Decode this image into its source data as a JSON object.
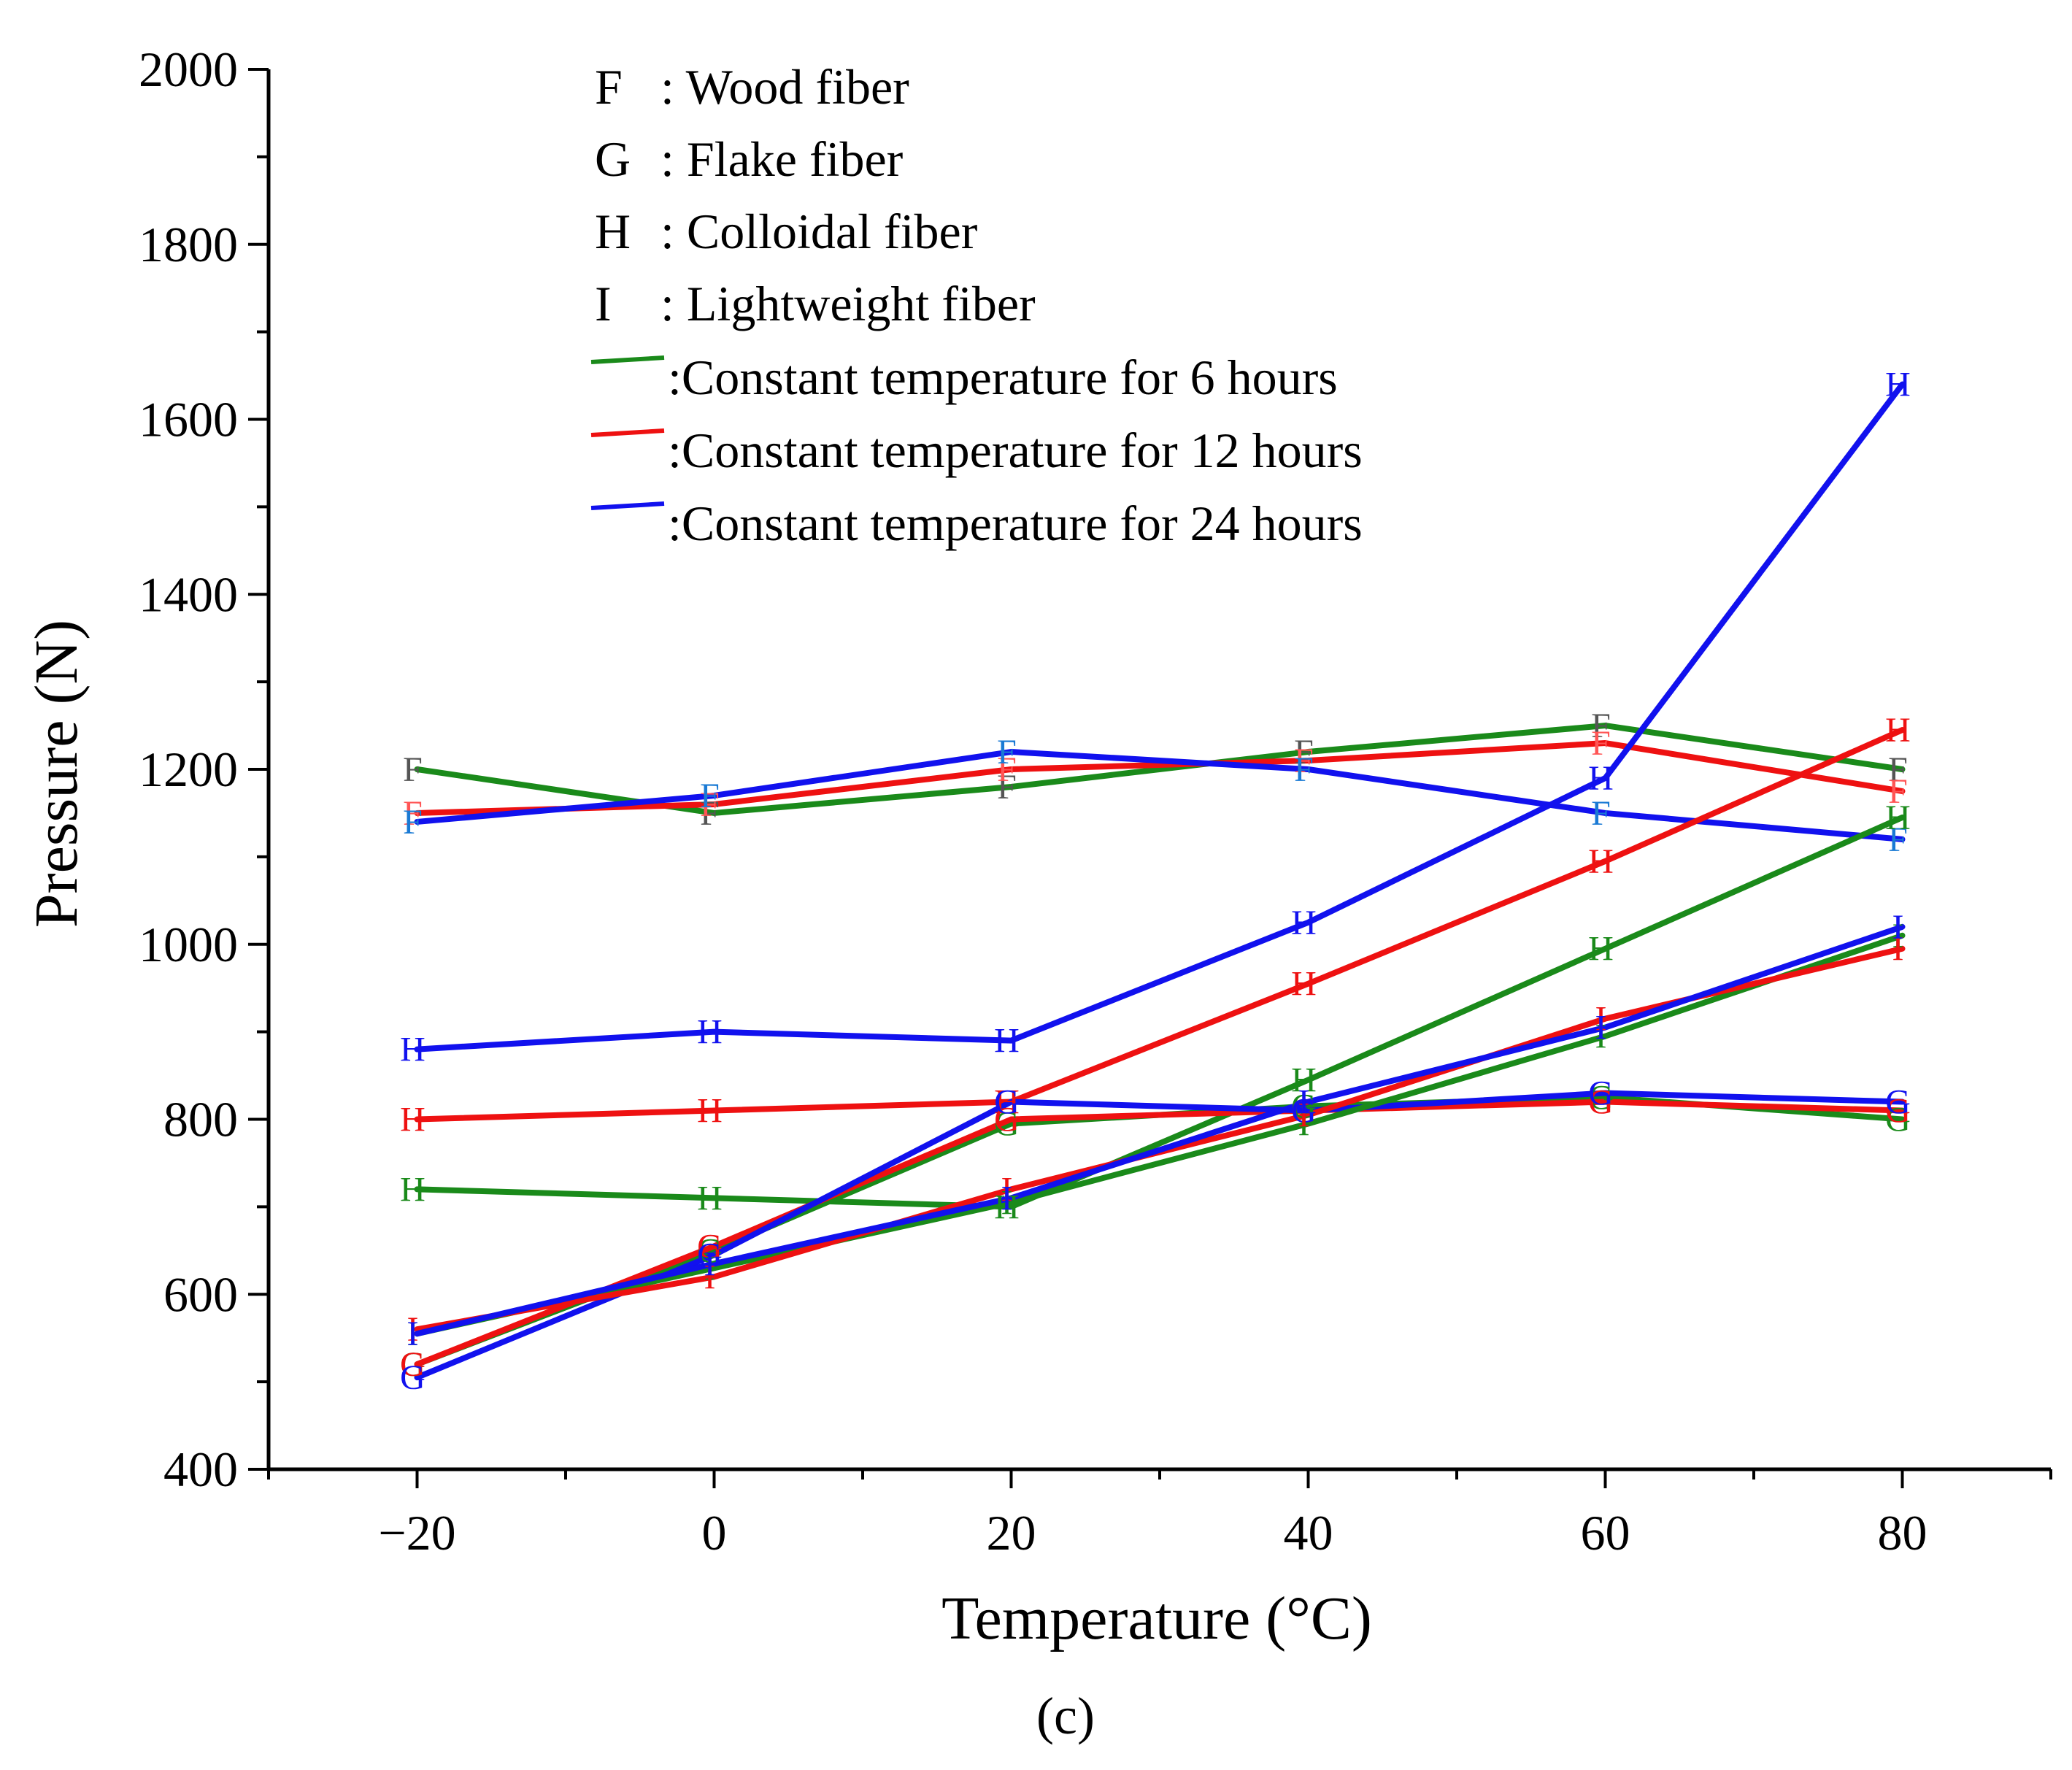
{
  "chart_data": {
    "type": "line",
    "xlabel": "Temperature (°C)",
    "ylabel": "Pressure (N)",
    "caption": "(c)",
    "xlim": [
      -30,
      90
    ],
    "ylim": [
      400,
      2000
    ],
    "x_ticks": [
      -20,
      0,
      20,
      40,
      60,
      80
    ],
    "x_tick_labels": [
      "−20",
      "0",
      "20",
      "40",
      "60",
      "80"
    ],
    "y_ticks": [
      400,
      600,
      800,
      1000,
      1200,
      1400,
      1600,
      1800,
      2000
    ],
    "y_tick_labels": [
      "400",
      "600",
      "800",
      "1000",
      "1200",
      "1400",
      "1600",
      "1800",
      "2000"
    ],
    "x": [
      -20,
      0,
      20,
      40,
      60,
      80
    ],
    "legend": {
      "placement": "top-center",
      "fiber_entries": [
        {
          "marker": "F",
          "label": ": Wood fiber"
        },
        {
          "marker": "G",
          "label": ": Flake fiber"
        },
        {
          "marker": "H",
          "label": ": Colloidal fiber"
        },
        {
          "marker": "I",
          "label": ": Lightweight fiber"
        }
      ],
      "line_entries": [
        {
          "color": "#1a8a1a",
          "label": ":Constant temperature for 6 hours"
        },
        {
          "color": "#ee1111",
          "label": ":Constant temperature for 12 hours"
        },
        {
          "color": "#1111ee",
          "label": ":Constant temperature for 24 hours"
        }
      ]
    },
    "series": [
      {
        "group": "6h",
        "fiber": "F",
        "color": "#1a8a1a",
        "marker_color": "#555555",
        "values": [
          1200,
          1150,
          1180,
          1220,
          1250,
          1200
        ]
      },
      {
        "group": "12h",
        "fiber": "F",
        "color": "#ee1111",
        "marker_color": "#ff5555",
        "values": [
          1150,
          1160,
          1200,
          1210,
          1230,
          1175
        ]
      },
      {
        "group": "24h",
        "fiber": "F",
        "color": "#1111ee",
        "marker_color": "#1a7ad4",
        "values": [
          1140,
          1170,
          1220,
          1200,
          1150,
          1120
        ]
      },
      {
        "group": "6h",
        "fiber": "H",
        "color": "#1a8a1a",
        "marker_color": "#1a8a1a",
        "values": [
          720,
          710,
          700,
          845,
          995,
          1145
        ]
      },
      {
        "group": "12h",
        "fiber": "H",
        "color": "#ee1111",
        "marker_color": "#ee1111",
        "values": [
          800,
          810,
          820,
          955,
          1095,
          1245
        ]
      },
      {
        "group": "24h",
        "fiber": "H",
        "color": "#1111ee",
        "marker_color": "#1111ee",
        "values": [
          880,
          900,
          890,
          1025,
          1190,
          1640
        ]
      },
      {
        "group": "6h",
        "fiber": "G",
        "color": "#1a8a1a",
        "marker_color": "#1a8a1a",
        "values": [
          520,
          650,
          795,
          815,
          825,
          800
        ]
      },
      {
        "group": "12h",
        "fiber": "G",
        "color": "#ee1111",
        "marker_color": "#ee1111",
        "values": [
          520,
          655,
          800,
          810,
          820,
          810
        ]
      },
      {
        "group": "24h",
        "fiber": "G",
        "color": "#1111ee",
        "marker_color": "#1111ee",
        "values": [
          505,
          645,
          820,
          810,
          830,
          820
        ]
      },
      {
        "group": "6h",
        "fiber": "I",
        "color": "#1a8a1a",
        "marker_color": "#1a8a1a",
        "values": [
          555,
          630,
          705,
          795,
          895,
          1010
        ]
      },
      {
        "group": "12h",
        "fiber": "I",
        "color": "#ee1111",
        "marker_color": "#ee1111",
        "values": [
          560,
          620,
          720,
          805,
          915,
          995
        ]
      },
      {
        "group": "24h",
        "fiber": "I",
        "color": "#1111ee",
        "marker_color": "#1111ee",
        "values": [
          555,
          635,
          710,
          820,
          905,
          1020
        ]
      }
    ]
  }
}
